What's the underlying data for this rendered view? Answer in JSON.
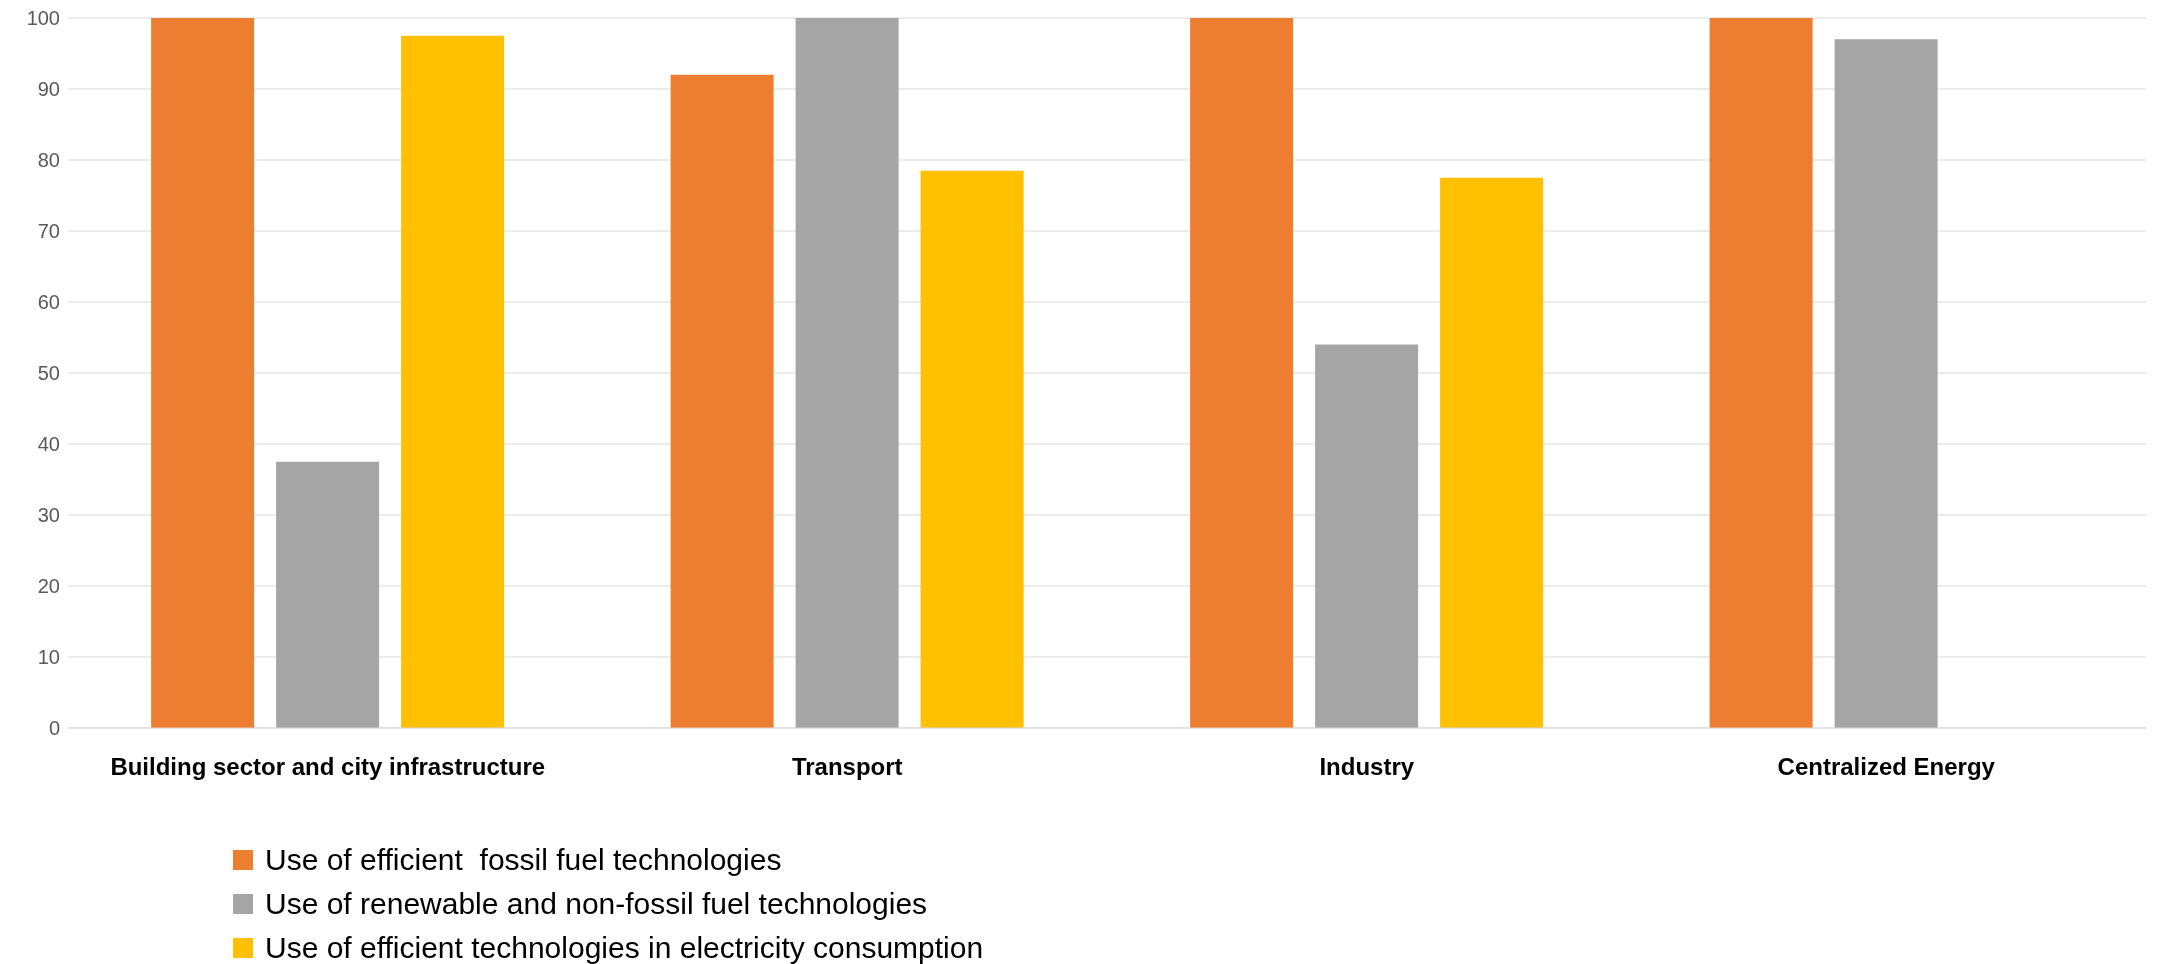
{
  "chart_data": {
    "type": "bar",
    "categories": [
      "Building sector and city infrastructure",
      "Transport",
      "Industry",
      "Centralized Energy"
    ],
    "series": [
      {
        "name": "Use of efficient  fossil fuel technologies",
        "color": "#ed7d31",
        "values": [
          100,
          92,
          100,
          100
        ]
      },
      {
        "name": "Use of renewable and non-fossil fuel technologies",
        "color": "#a5a5a5",
        "values": [
          37.5,
          100,
          54,
          97
        ]
      },
      {
        "name": "Use of efficient technologies in electricity consumption",
        "color": "#ffc000",
        "values": [
          97.5,
          78.5,
          77.5,
          null
        ]
      }
    ],
    "ylim": [
      0,
      100
    ],
    "yticks": [
      0,
      10,
      20,
      30,
      40,
      50,
      60,
      70,
      80,
      90,
      100
    ],
    "grid": "y",
    "legend": "bottom"
  }
}
